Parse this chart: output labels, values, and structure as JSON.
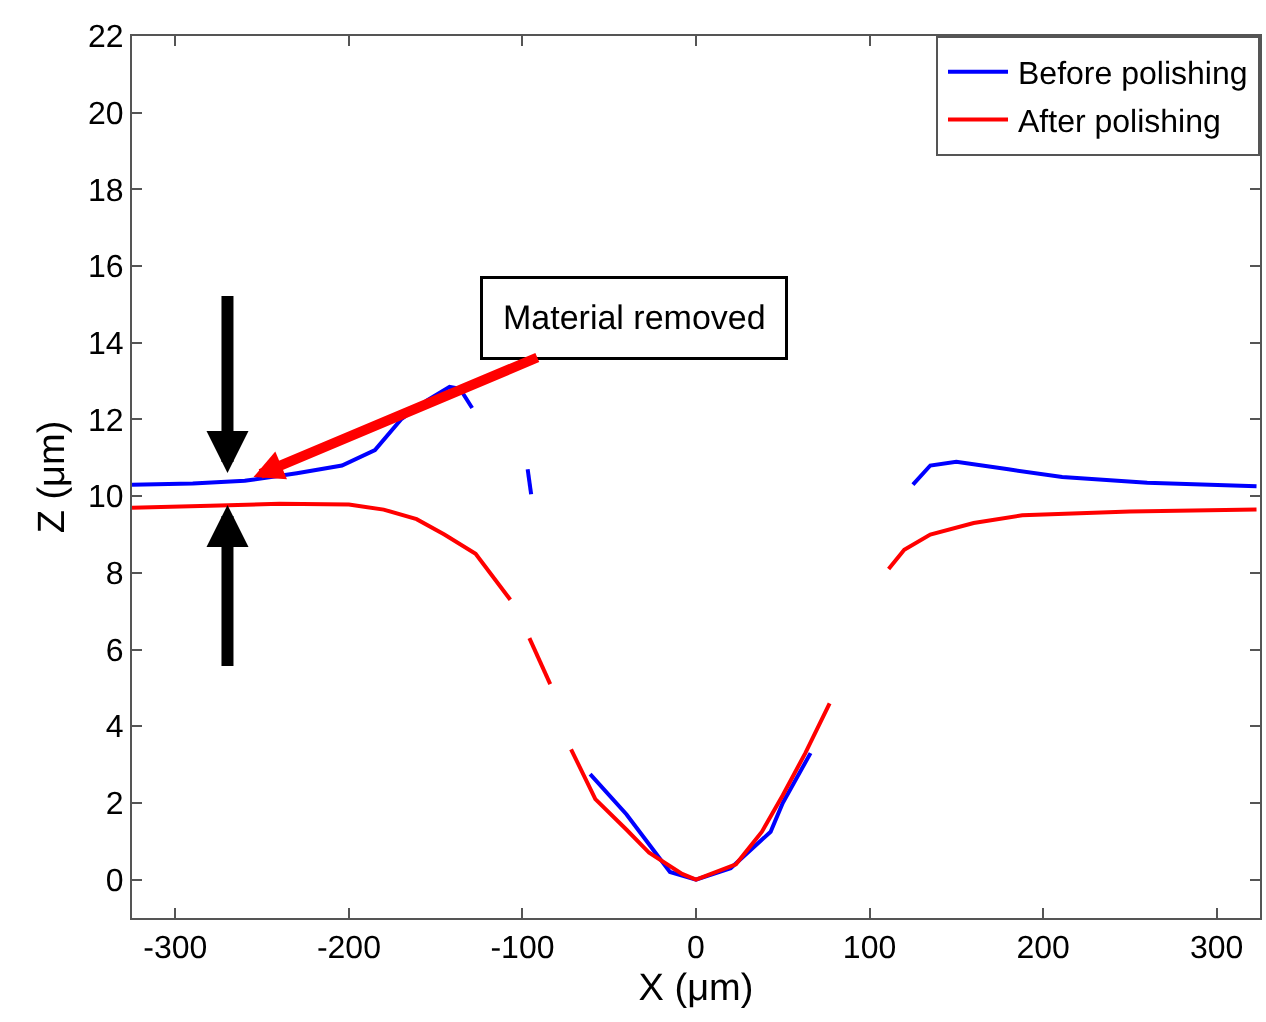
{
  "chart_data": {
    "type": "line",
    "xlabel": "X (μm)",
    "ylabel": "Z (μm)",
    "xlim": [
      -325,
      325
    ],
    "ylim": [
      -1,
      22
    ],
    "xticks": [
      -300,
      -200,
      -100,
      0,
      100,
      200,
      300
    ],
    "yticks": [
      0,
      2,
      4,
      6,
      8,
      10,
      12,
      14,
      16,
      18,
      20,
      22
    ],
    "grid": false,
    "legend": "top right",
    "marker": "none",
    "line_style": "solid",
    "annotations": [
      {
        "text": "Material removed",
        "x": -255,
        "y": 10.5
      }
    ],
    "series": [
      {
        "name": "Before polishing",
        "color": "#0000ff",
        "x": [
          -325,
          -290,
          -260,
          -230,
          -204,
          -185,
          -170,
          -155,
          -142,
          -136,
          -129,
          -120,
          -97,
          -95,
          -90,
          -61,
          -40,
          -15,
          0,
          20,
          43,
          50,
          66,
          100,
          125,
          135,
          150,
          180,
          211,
          260,
          323
        ],
        "values": [
          10.3,
          10.33,
          10.4,
          10.6,
          10.8,
          11.2,
          12.0,
          12.5,
          12.85,
          12.8,
          12.3,
          null,
          10.7,
          10.05,
          null,
          2.75,
          1.7,
          0.2,
          0,
          0.3,
          1.25,
          2.0,
          3.3,
          null,
          10.3,
          10.8,
          10.9,
          10.7,
          10.5,
          10.35,
          10.26
        ]
      },
      {
        "name": "After polishing",
        "color": "#ff0000",
        "x": [
          -325,
          -280,
          -240,
          -200,
          -180,
          -161,
          -145,
          -127,
          -107,
          -100,
          -96,
          -84,
          -78,
          -72,
          -58,
          -40,
          -27,
          -8,
          0,
          23,
          38,
          50,
          63,
          77,
          90,
          111,
          120,
          135,
          160,
          188,
          250,
          323
        ],
        "values": [
          9.7,
          9.75,
          9.8,
          9.78,
          9.65,
          9.4,
          9.0,
          8.5,
          7.3,
          null,
          6.3,
          5.1,
          null,
          3.4,
          2.1,
          1.3,
          0.7,
          0.15,
          0,
          0.4,
          1.25,
          2.2,
          3.3,
          4.6,
          null,
          8.1,
          8.6,
          9.0,
          9.3,
          9.5,
          9.6,
          9.65
        ]
      }
    ]
  }
}
